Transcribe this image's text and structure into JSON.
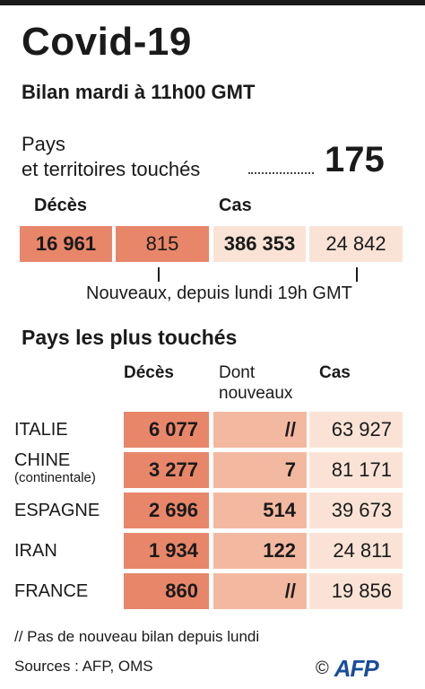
{
  "header": {
    "title": "Covid-19",
    "subtitle": "Bilan mardi à 11h00 GMT"
  },
  "summary": {
    "countries_label_line1": "Pays",
    "countries_label_line2": "et territoires touchés",
    "countries_count": "175",
    "deaths_label": "Décès",
    "cases_label": "Cas",
    "deaths_total": "16 961",
    "deaths_new": "815",
    "cases_total": "386 353",
    "cases_new": "24 842",
    "new_since_note": "Nouveaux, depuis lundi 19h GMT"
  },
  "table": {
    "section_title": "Pays les plus touchés",
    "col_deaths": "Décès",
    "col_new_line1": "Dont",
    "col_new_line2": "nouveaux",
    "col_cases": "Cas"
  },
  "colors": {
    "deaths_strong": "#e8866a",
    "deaths_light": "#f3b9a0",
    "cases": "#fae3d6"
  },
  "chart_data": {
    "type": "table",
    "columns": [
      "Décès",
      "Dont nouveaux",
      "Cas"
    ],
    "rows": [
      {
        "country": "ITALIE",
        "sub": "",
        "deaths": "6 077",
        "new": "//",
        "cases": "63 927"
      },
      {
        "country": "CHINE",
        "sub": "(continentale)",
        "deaths": "3 277",
        "new": "7",
        "cases": "81 171"
      },
      {
        "country": "ESPAGNE",
        "sub": "",
        "deaths": "2 696",
        "new": "514",
        "cases": "39 673"
      },
      {
        "country": "IRAN",
        "sub": "",
        "deaths": "1 934",
        "new": "122",
        "cases": "24 811"
      },
      {
        "country": "FRANCE",
        "sub": "",
        "deaths": "860",
        "new": "//",
        "cases": "19 856"
      }
    ]
  },
  "footer": {
    "note": "// Pas de nouveau bilan depuis lundi",
    "sources": "Sources : AFP, OMS",
    "copyright": "©",
    "logo_text": "AFP"
  }
}
